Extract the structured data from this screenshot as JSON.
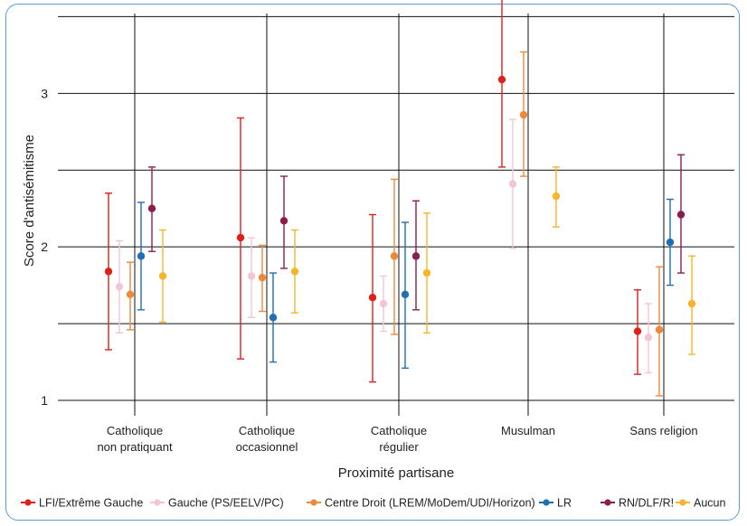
{
  "chart_data": {
    "type": "scatter",
    "subtype": "point-with-error-bars",
    "xlabel": "Proximité partisane",
    "ylabel": "Score d'antisémitisme",
    "ylim": [
      0.9,
      3.52
    ],
    "yticks": [
      1,
      2,
      3
    ],
    "y_gridlines": [
      1,
      1.5,
      2,
      2.5,
      3,
      3.5
    ],
    "grid": true,
    "legend_position": "bottom",
    "categories": [
      [
        "Catholique",
        "non pratiquant"
      ],
      [
        "Catholique",
        "occasionnel"
      ],
      [
        "Catholique",
        "régulier"
      ],
      [
        "Musulman"
      ],
      [
        "Sans religion"
      ]
    ],
    "series": [
      {
        "name": "LFI/Extrême Gauche",
        "color": "#e0201b",
        "values": [
          1.84,
          2.06,
          1.67,
          3.09,
          1.45
        ],
        "lower": [
          1.33,
          1.27,
          1.12,
          2.52,
          1.17
        ],
        "upper": [
          2.35,
          2.84,
          2.21,
          3.65,
          1.72
        ]
      },
      {
        "name": "Gauche (PS/EELV/PC)",
        "color": "#f2c6d4",
        "values": [
          1.74,
          1.81,
          1.63,
          2.41,
          1.41
        ],
        "lower": [
          1.44,
          1.54,
          1.45,
          1.99,
          1.18
        ],
        "upper": [
          2.04,
          2.06,
          1.81,
          2.83,
          1.63
        ]
      },
      {
        "name": "Centre Droit (LREM/MoDem/UDI/Horizon)",
        "color": "#f0883a",
        "values": [
          1.69,
          1.8,
          1.94,
          2.86,
          1.46
        ],
        "lower": [
          1.46,
          1.58,
          1.43,
          2.46,
          1.03
        ],
        "upper": [
          1.9,
          2.01,
          2.44,
          3.27,
          1.87
        ]
      },
      {
        "name": "LR",
        "color": "#1f6fb5",
        "values": [
          1.94,
          1.54,
          1.69,
          null,
          2.03
        ],
        "lower": [
          1.59,
          1.25,
          1.21,
          null,
          1.75
        ],
        "upper": [
          2.29,
          1.83,
          2.16,
          null,
          2.31
        ]
      },
      {
        "name": "RN/DLF/R!",
        "color": "#8a1f4f",
        "values": [
          2.25,
          2.17,
          1.94,
          null,
          2.21
        ],
        "lower": [
          1.97,
          1.86,
          1.59,
          null,
          1.83
        ],
        "upper": [
          2.52,
          2.46,
          2.3,
          null,
          2.6
        ]
      },
      {
        "name": "Aucun",
        "color": "#f7b52a",
        "values": [
          1.81,
          1.84,
          1.83,
          2.33,
          1.63
        ],
        "lower": [
          1.51,
          1.57,
          1.44,
          2.13,
          1.3
        ],
        "upper": [
          2.11,
          2.11,
          2.22,
          2.52,
          1.94
        ]
      }
    ]
  }
}
